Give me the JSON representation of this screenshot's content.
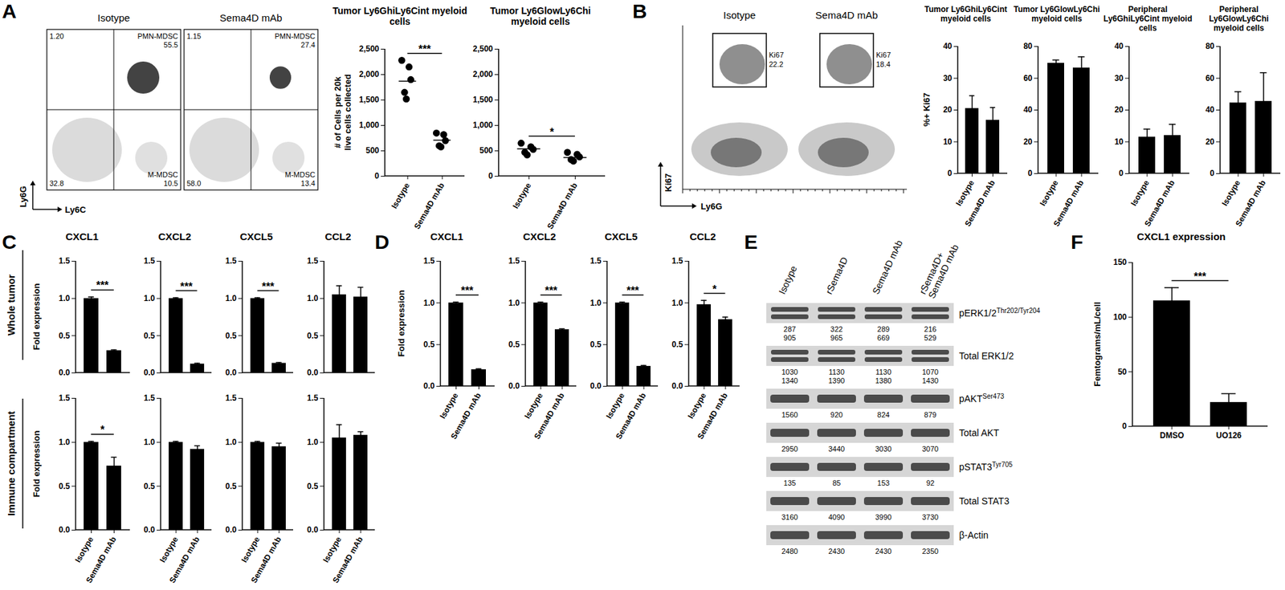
{
  "chart_data": [
    {
      "panel": "A",
      "type": "scatter",
      "title": "Tumor Ly6GhiLy6Cint myeloid cells",
      "ylabel": "# of Cells per 20k live cells collected",
      "categories": [
        "Isotype",
        "Sema4D mAb"
      ],
      "points": [
        [
          2280,
          2150,
          1900,
          1650,
          1520
        ],
        [
          850,
          820,
          700,
          600,
          580
        ]
      ],
      "means": [
        1870,
        710
      ],
      "ylim": [
        0,
        2500
      ],
      "yticks": [
        0,
        500,
        {
          "value": 1000,
          "label": "1,000"
        },
        {
          "value": 1500,
          "label": "1,500"
        },
        {
          "value": 2000,
          "label": "2,000"
        },
        {
          "value": 2500,
          "label": "2,500"
        }
      ],
      "annotation": "***",
      "color": "#000000"
    },
    {
      "panel": "A",
      "type": "scatter",
      "title": "Tumor Ly6GlowLy6Chi myeloid cells",
      "categories": [
        "Isotype",
        "Sema4D mAb"
      ],
      "points": [
        [
          650,
          580,
          530,
          470,
          420
        ],
        [
          470,
          430,
          380,
          330,
          300
        ]
      ],
      "means": [
        540,
        370
      ],
      "ylim": [
        0,
        2500
      ],
      "yticks": [
        0,
        500,
        {
          "value": 1000,
          "label": "1,000"
        },
        {
          "value": 1500,
          "label": "1,500"
        },
        {
          "value": 2000,
          "label": "2,000"
        },
        {
          "value": 2500,
          "label": "2,500"
        }
      ],
      "annotation": "*",
      "color": "#000000"
    },
    {
      "panel": "B",
      "type": "bar",
      "title": "Tumor Ly6GhiLy6Cint myeloid cells",
      "ylabel": "%+ Ki67",
      "categories": [
        "Isotype",
        "Sema4D mAb"
      ],
      "values": [
        20.5,
        16.8
      ],
      "errors": [
        4,
        4
      ],
      "ylim": [
        0,
        40
      ],
      "yticks": [
        0,
        10,
        20,
        30,
        40
      ],
      "color": "#000000"
    },
    {
      "panel": "B",
      "type": "bar",
      "title": "Tumor Ly6GlowLy6Chi myeloid cells",
      "categories": [
        "Isotype",
        "Sema4D mAb"
      ],
      "values": [
        69.5,
        66.5
      ],
      "errors": [
        2,
        7
      ],
      "ylim": [
        0,
        80
      ],
      "yticks": [
        0,
        20,
        40,
        60,
        80
      ],
      "color": "#000000"
    },
    {
      "panel": "B",
      "type": "bar",
      "title": "Peripheral Ly6GhiLy6Cint myeloid cells",
      "categories": [
        "Isotype",
        "Sema4D mAb"
      ],
      "values": [
        11.5,
        12
      ],
      "errors": [
        2.5,
        3.5
      ],
      "ylim": [
        0,
        40
      ],
      "yticks": [
        0,
        10,
        20,
        30,
        40
      ],
      "color": "#000000"
    },
    {
      "panel": "B",
      "type": "bar",
      "title": "Peripheral Ly6GlowLy6Chi myeloid cells",
      "categories": [
        "Isotype",
        "Sema4D mAb"
      ],
      "values": [
        44.5,
        45.5
      ],
      "errors": [
        7,
        18
      ],
      "ylim": [
        0,
        80
      ],
      "yticks": [
        0,
        20,
        40,
        60,
        80
      ],
      "color": "#000000"
    },
    {
      "panel": "C",
      "type": "bar",
      "title": "CXCL1",
      "ylabel": "Fold expression",
      "tick_labels": "y",
      "categories": [
        "Isotype",
        "Sema4D mAb"
      ],
      "values": [
        1.0,
        0.3
      ],
      "errors": [
        0.02,
        0.01
      ],
      "ylim": [
        0,
        1.5
      ],
      "yticks": [
        {
          "value": 0,
          "label": "0.0"
        },
        0.5,
        {
          "value": 1,
          "label": "1.0"
        },
        1.5
      ],
      "annotation": "***",
      "color": "#000000"
    },
    {
      "panel": "C",
      "type": "bar",
      "title": "CXCL2",
      "tick_labels": "y",
      "categories": [
        "Isotype",
        "Sema4D mAb"
      ],
      "values": [
        1.0,
        0.12
      ],
      "errors": [
        0.01,
        0.01
      ],
      "ylim": [
        0,
        1.5
      ],
      "yticks": [
        {
          "value": 0,
          "label": "0.0"
        },
        0.5,
        {
          "value": 1,
          "label": "1.0"
        },
        1.5
      ],
      "annotation": "***",
      "color": "#000000"
    },
    {
      "panel": "C",
      "type": "bar",
      "title": "CXCL5",
      "tick_labels": "y",
      "categories": [
        "Isotype",
        "Sema4D mAb"
      ],
      "values": [
        1.0,
        0.13
      ],
      "errors": [
        0.01,
        0.01
      ],
      "ylim": [
        0,
        1.5
      ],
      "yticks": [
        {
          "value": 0,
          "label": "0.0"
        },
        0.5,
        {
          "value": 1,
          "label": "1.0"
        },
        1.5
      ],
      "annotation": "***",
      "color": "#000000"
    },
    {
      "panel": "C",
      "type": "bar",
      "title": "CCL2",
      "tick_labels": "y",
      "categories": [
        "Isotype",
        "Sema4D mAb"
      ],
      "values": [
        1.05,
        1.02
      ],
      "errors": [
        0.12,
        0.13
      ],
      "ylim": [
        0,
        1.5
      ],
      "yticks": [
        {
          "value": 0,
          "label": "0.0"
        },
        0.5,
        {
          "value": 1,
          "label": "1.0"
        },
        1.5
      ],
      "color": "#000000"
    },
    {
      "panel": "C",
      "type": "bar",
      "ylabel": "Fold expression",
      "categories": [
        "Isotype",
        "Sema4D mAb"
      ],
      "values": [
        1.0,
        0.73
      ],
      "errors": [
        0.01,
        0.1
      ],
      "ylim": [
        0,
        1.5
      ],
      "yticks": [
        {
          "value": 0,
          "label": "0.0"
        },
        0.5,
        {
          "value": 1,
          "label": "1.0"
        },
        1.5
      ],
      "annotation": "*",
      "color": "#000000"
    },
    {
      "panel": "C",
      "type": "bar",
      "categories": [
        "Isotype",
        "Sema4D mAb"
      ],
      "values": [
        1.0,
        0.92
      ],
      "errors": [
        0.01,
        0.04
      ],
      "ylim": [
        0,
        1.5
      ],
      "yticks": [
        {
          "value": 0,
          "label": "0.0"
        },
        0.5,
        {
          "value": 1,
          "label": "1.0"
        },
        1.5
      ],
      "color": "#000000"
    },
    {
      "panel": "C",
      "type": "bar",
      "categories": [
        "Isotype",
        "Sema4D mAb"
      ],
      "values": [
        1.0,
        0.95
      ],
      "errors": [
        0.01,
        0.04
      ],
      "ylim": [
        0,
        1.5
      ],
      "yticks": [
        {
          "value": 0,
          "label": "0.0"
        },
        0.5,
        {
          "value": 1,
          "label": "1.0"
        },
        1.5
      ],
      "color": "#000000"
    },
    {
      "panel": "C",
      "type": "bar",
      "categories": [
        "Isotype",
        "Sema4D mAb"
      ],
      "values": [
        1.05,
        1.08
      ],
      "errors": [
        0.15,
        0.04
      ],
      "ylim": [
        0,
        1.5
      ],
      "yticks": [
        {
          "value": 0,
          "label": "0.0"
        },
        0.5,
        {
          "value": 1,
          "label": "1.0"
        },
        1.5
      ],
      "color": "#000000"
    },
    {
      "panel": "D",
      "type": "bar",
      "title": "CXCL1",
      "ylabel": "Fold expression",
      "categories": [
        "Isotype",
        "Sema4D mAb"
      ],
      "values": [
        1.0,
        0.2
      ],
      "errors": [
        0.01,
        0.01
      ],
      "ylim": [
        0,
        1.5
      ],
      "yticks": [
        {
          "value": 0,
          "label": "0.0"
        },
        0.5,
        {
          "value": 1,
          "label": "1.0"
        },
        1.5
      ],
      "annotation": "***",
      "color": "#000000"
    },
    {
      "panel": "D",
      "type": "bar",
      "title": "CXCL2",
      "categories": [
        "Isotype",
        "Sema4D mAb"
      ],
      "values": [
        1.0,
        0.68
      ],
      "errors": [
        0.01,
        0.01
      ],
      "ylim": [
        0,
        1.5
      ],
      "yticks": [
        {
          "value": 0,
          "label": "0.0"
        },
        0.5,
        {
          "value": 1,
          "label": "1.0"
        },
        1.5
      ],
      "annotation": "***",
      "color": "#000000"
    },
    {
      "panel": "D",
      "type": "bar",
      "title": "CXCL5",
      "categories": [
        "Isotype",
        "Sema4D mAb"
      ],
      "values": [
        1.0,
        0.24
      ],
      "errors": [
        0.01,
        0.01
      ],
      "ylim": [
        0,
        1.5
      ],
      "yticks": [
        {
          "value": 0,
          "label": "0.0"
        },
        0.5,
        {
          "value": 1,
          "label": "1.0"
        },
        1.5
      ],
      "annotation": "***",
      "color": "#000000"
    },
    {
      "panel": "D",
      "type": "bar",
      "title": "CCL2",
      "categories": [
        "Isotype",
        "Sema4D mAb"
      ],
      "values": [
        0.98,
        0.8
      ],
      "errors": [
        0.05,
        0.03
      ],
      "ylim": [
        0,
        1.5
      ],
      "yticks": [
        {
          "value": 0,
          "label": "0.0"
        },
        0.5,
        {
          "value": 1,
          "label": "1.0"
        },
        1.5
      ],
      "annotation": "*",
      "color": "#000000"
    },
    {
      "panel": "F",
      "type": "bar",
      "title": "CXCL1 expression",
      "ylabel": "Femtograms/mL/cell",
      "categories": [
        "DMSO",
        "UO126"
      ],
      "values": [
        115,
        22
      ],
      "errors": [
        12,
        8
      ],
      "ylim": [
        0,
        150
      ],
      "yticks": [
        0,
        50,
        100,
        150
      ],
      "annotation": "***",
      "color": "#000000"
    }
  ],
  "row_labels": [
    "Whole tumor",
    "Immune compartment"
  ],
  "flow_cytometry": [
    {
      "panel": "A",
      "x_label": "Ly6C",
      "y_label": "Ly6G",
      "plots": [
        {
          "title": "Isotype",
          "top_left": [
            "1.20"
          ],
          "top_right": [
            "PMN-MDSC",
            "55.5"
          ],
          "bottom_left": [
            "32.8"
          ],
          "bottom_right": [
            "M-MDSC",
            "10.5"
          ]
        },
        {
          "title": "Sema4D mAb",
          "top_left": [
            "1.15"
          ],
          "top_right": [
            "PMN-MDSC",
            "27.4"
          ],
          "bottom_left": [
            "58.0"
          ],
          "bottom_right": [
            "M-MDSC",
            "13.4"
          ]
        }
      ]
    },
    {
      "panel": "B",
      "x_label": "Ly6G",
      "y_label": "Ki67",
      "plots": [
        {
          "title": "Isotype",
          "gate_label": "Ki67",
          "gate_value": "22.2"
        },
        {
          "title": "Sema4D mAb",
          "gate_label": "Ki67",
          "gate_value": "18.4"
        }
      ]
    }
  ],
  "western_blot": {
    "panel": "E",
    "lanes": [
      [
        "Isotype"
      ],
      [
        "rSema4D"
      ],
      [
        "Sema4D mAb"
      ],
      [
        "rSema4D+",
        "Sema4D mAb"
      ]
    ],
    "rows": [
      {
        "label": "pERK1/2",
        "sup": "Thr202/Tyr204",
        "quant": [
          [
            "287",
            "905"
          ],
          [
            "322",
            "965"
          ],
          [
            "289",
            "669"
          ],
          [
            "216",
            "529"
          ]
        ]
      },
      {
        "label": "Total ERK1/2",
        "quant": [
          [
            "1030",
            "1340"
          ],
          [
            "1130",
            "1390"
          ],
          [
            "1130",
            "1380"
          ],
          [
            "1070",
            "1430"
          ]
        ]
      },
      {
        "label": "pAKT",
        "sup": "Ser473",
        "quant": [
          [
            "1560"
          ],
          [
            "920"
          ],
          [
            "824"
          ],
          [
            "879"
          ]
        ]
      },
      {
        "label": "Total AKT",
        "quant": [
          [
            "2950"
          ],
          [
            "3440"
          ],
          [
            "3030"
          ],
          [
            "3070"
          ]
        ]
      },
      {
        "label": "pSTAT3",
        "sup": "Tyr705",
        "quant": [
          [
            "135"
          ],
          [
            "85"
          ],
          [
            "153"
          ],
          [
            "92"
          ]
        ]
      },
      {
        "label": "Total STAT3",
        "quant": [
          [
            "3160"
          ],
          [
            "4090"
          ],
          [
            "3990"
          ],
          [
            "3730"
          ]
        ]
      },
      {
        "label": "β-Actin",
        "quant": [
          [
            "2480"
          ],
          [
            "2430"
          ],
          [
            "2430"
          ],
          [
            "2350"
          ]
        ]
      }
    ]
  }
}
